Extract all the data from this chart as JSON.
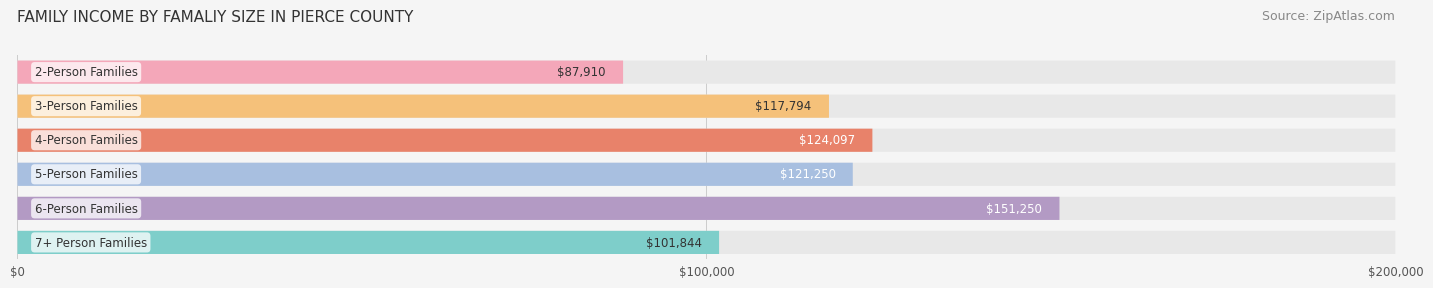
{
  "title": "FAMILY INCOME BY FAMALIY SIZE IN PIERCE COUNTY",
  "source": "Source: ZipAtlas.com",
  "categories": [
    "2-Person Families",
    "3-Person Families",
    "4-Person Families",
    "5-Person Families",
    "6-Person Families",
    "7+ Person Families"
  ],
  "values": [
    87910,
    117794,
    124097,
    121250,
    151250,
    101844
  ],
  "bar_colors": [
    "#F4A7B9",
    "#F5C17A",
    "#E8826A",
    "#A8BFE0",
    "#B39AC4",
    "#7ECECA"
  ],
  "label_colors": [
    "#333333",
    "#333333",
    "#ffffff",
    "#ffffff",
    "#ffffff",
    "#333333"
  ],
  "value_labels": [
    "$87,910",
    "$117,794",
    "$124,097",
    "$121,250",
    "$151,250",
    "$101,844"
  ],
  "xlim": [
    0,
    200000
  ],
  "xticks": [
    0,
    100000,
    200000
  ],
  "xtick_labels": [
    "$0",
    "$100,000",
    "$200,000"
  ],
  "title_fontsize": 11,
  "source_fontsize": 9,
  "bar_label_fontsize": 8.5,
  "value_label_fontsize": 8.5,
  "background_color": "#f5f5f5",
  "bar_background_color": "#e8e8e8"
}
